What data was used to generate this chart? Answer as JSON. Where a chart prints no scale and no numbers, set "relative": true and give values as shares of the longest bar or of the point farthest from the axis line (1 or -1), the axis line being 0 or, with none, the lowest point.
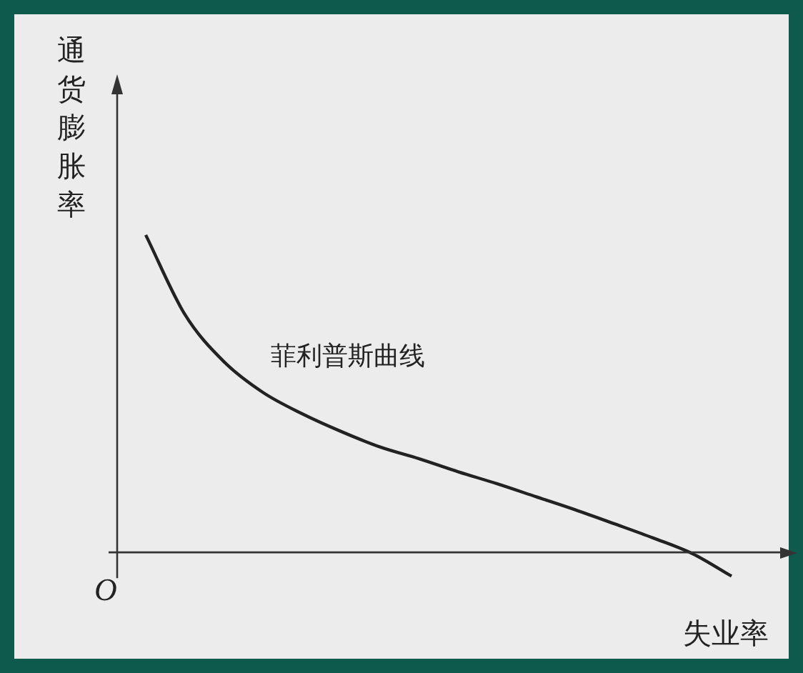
{
  "chart_data": {
    "type": "line",
    "relative": true,
    "xlabel": "失业率",
    "ylabel": "通货膨胀率",
    "categories": [
      null,
      null,
      null,
      null,
      null,
      null,
      null,
      null,
      null,
      null,
      null,
      null,
      null,
      null,
      null,
      null
    ],
    "series": [
      {
        "name": "菲利普斯曲线",
        "color": "#222222",
        "values": [
          1,
          0.75,
          0.601,
          0.504,
          0.437,
          0.381,
          0.332,
          0.295,
          0.254,
          0.216,
          0.175,
          0.134,
          0.09,
          0.045,
          -0.004,
          -0.075
        ]
      }
    ],
    "annotations": [
      "O"
    ],
    "marker": "none",
    "legend": false
  }
}
